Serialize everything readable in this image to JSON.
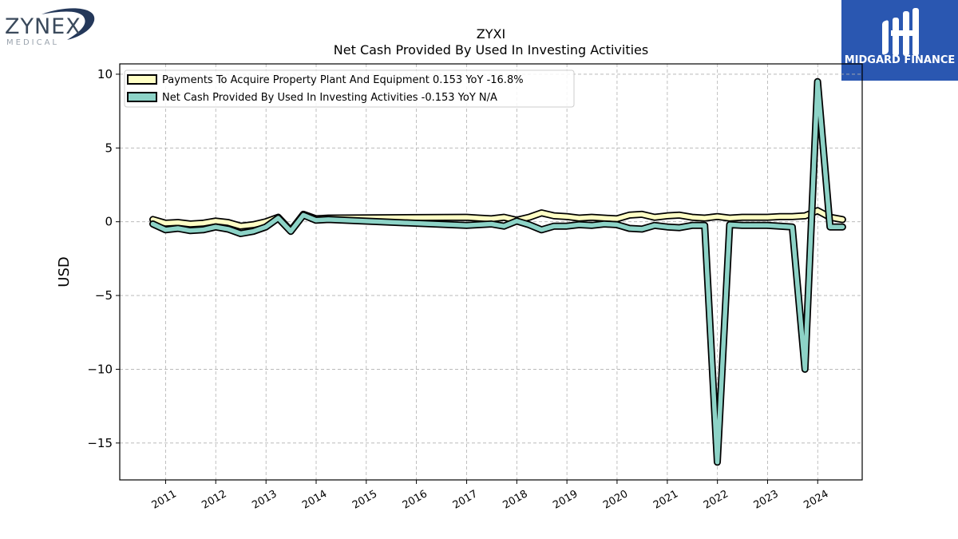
{
  "logos": {
    "left": {
      "name": "ZYNEX",
      "sub": "MEDICAL"
    },
    "right": {
      "name": "MIDGARD FINANCE"
    }
  },
  "chart_data": {
    "type": "line",
    "title": "ZYXI",
    "subtitle": "Net Cash Provided By Used In Investing Activities",
    "xlabel": "",
    "ylabel": "USD",
    "x_type": "date",
    "xlim": [
      "2010-02-01",
      "2024-11-20"
    ],
    "ylim": [
      -17.5,
      10.7
    ],
    "yticks": [
      10,
      5,
      0,
      -5,
      -10,
      -15
    ],
    "ytick_labels": [
      "10",
      "5",
      "0",
      "−5",
      "−10",
      "−15"
    ],
    "xticks": [
      "2011-01-01",
      "2012-01-01",
      "2013-01-01",
      "2014-01-01",
      "2015-01-01",
      "2016-01-01",
      "2017-01-01",
      "2018-01-01",
      "2019-01-01",
      "2020-01-01",
      "2021-01-01",
      "2022-01-01",
      "2023-01-01",
      "2024-01-01"
    ],
    "xtick_labels": [
      "2011",
      "2012",
      "2013",
      "2014",
      "2015",
      "2016",
      "2017",
      "2018",
      "2019",
      "2020",
      "2021",
      "2022",
      "2023",
      "2024"
    ],
    "grid": true,
    "legend_position": "top-left",
    "series": [
      {
        "name": "Payments To Acquire Property Plant And Equipment  0.153 YoY -16.8%",
        "color": "#ffffc5",
        "points": [
          [
            "2010-09-30",
            0.15
          ],
          [
            "2010-12-31",
            -0.1
          ],
          [
            "2011-03-31",
            -0.05
          ],
          [
            "2011-06-30",
            -0.15
          ],
          [
            "2011-09-30",
            -0.1
          ],
          [
            "2011-12-31",
            0.05
          ],
          [
            "2012-03-31",
            -0.05
          ],
          [
            "2012-06-30",
            -0.3
          ],
          [
            "2012-09-30",
            -0.2
          ],
          [
            "2012-12-31",
            0.0
          ],
          [
            "2013-03-31",
            0.3
          ],
          [
            "2013-06-30",
            -0.6
          ],
          [
            "2013-09-30",
            0.5
          ],
          [
            "2013-12-31",
            0.2
          ],
          [
            "2014-03-31",
            0.25
          ],
          [
            "2016-12-31",
            0.3
          ],
          [
            "2017-03-31",
            0.25
          ],
          [
            "2017-06-30",
            0.2
          ],
          [
            "2017-09-30",
            0.3
          ],
          [
            "2017-12-31",
            0.1
          ],
          [
            "2018-03-31",
            0.3
          ],
          [
            "2018-06-30",
            0.6
          ],
          [
            "2018-09-30",
            0.4
          ],
          [
            "2018-12-31",
            0.35
          ],
          [
            "2019-03-31",
            0.25
          ],
          [
            "2019-06-30",
            0.3
          ],
          [
            "2019-09-30",
            0.25
          ],
          [
            "2019-12-31",
            0.2
          ],
          [
            "2020-03-31",
            0.45
          ],
          [
            "2020-06-30",
            0.5
          ],
          [
            "2020-09-30",
            0.3
          ],
          [
            "2020-12-31",
            0.4
          ],
          [
            "2021-03-31",
            0.45
          ],
          [
            "2021-06-30",
            0.3
          ],
          [
            "2021-09-30",
            0.25
          ],
          [
            "2021-12-31",
            0.35
          ],
          [
            "2022-03-31",
            0.25
          ],
          [
            "2022-06-30",
            0.3
          ],
          [
            "2022-09-30",
            0.3
          ],
          [
            "2022-12-31",
            0.3
          ],
          [
            "2023-03-31",
            0.35
          ],
          [
            "2023-06-30",
            0.35
          ],
          [
            "2023-09-30",
            0.4
          ],
          [
            "2023-12-31",
            0.75
          ],
          [
            "2024-03-31",
            0.3
          ],
          [
            "2024-06-30",
            0.15
          ]
        ]
      },
      {
        "name": "Net Cash Provided By Used In Investing Activities  -0.153 YoY N/A",
        "color": "#8dd3c7",
        "points": [
          [
            "2010-09-30",
            -0.15
          ],
          [
            "2010-12-31",
            -0.55
          ],
          [
            "2011-03-31",
            -0.45
          ],
          [
            "2011-06-30",
            -0.6
          ],
          [
            "2011-09-30",
            -0.55
          ],
          [
            "2011-12-31",
            -0.35
          ],
          [
            "2012-03-31",
            -0.5
          ],
          [
            "2012-06-30",
            -0.8
          ],
          [
            "2012-09-30",
            -0.65
          ],
          [
            "2012-12-31",
            -0.35
          ],
          [
            "2013-03-31",
            0.25
          ],
          [
            "2013-06-30",
            -0.65
          ],
          [
            "2013-09-30",
            0.45
          ],
          [
            "2013-12-31",
            0.1
          ],
          [
            "2014-03-31",
            0.15
          ],
          [
            "2016-12-31",
            -0.25
          ],
          [
            "2017-03-31",
            -0.2
          ],
          [
            "2017-06-30",
            -0.15
          ],
          [
            "2017-09-30",
            -0.3
          ],
          [
            "2017-12-31",
            0.05
          ],
          [
            "2018-03-31",
            -0.2
          ],
          [
            "2018-06-30",
            -0.55
          ],
          [
            "2018-09-30",
            -0.3
          ],
          [
            "2018-12-31",
            -0.3
          ],
          [
            "2019-03-31",
            -0.2
          ],
          [
            "2019-06-30",
            -0.25
          ],
          [
            "2019-09-30",
            -0.15
          ],
          [
            "2019-12-31",
            -0.2
          ],
          [
            "2020-03-31",
            -0.45
          ],
          [
            "2020-06-30",
            -0.5
          ],
          [
            "2020-09-30",
            -0.25
          ],
          [
            "2020-12-31",
            -0.35
          ],
          [
            "2021-03-31",
            -0.4
          ],
          [
            "2021-06-30",
            -0.25
          ],
          [
            "2021-09-30",
            -0.25
          ],
          [
            "2021-12-31",
            -16.3
          ],
          [
            "2022-03-31",
            -0.2
          ],
          [
            "2022-06-30",
            -0.25
          ],
          [
            "2022-09-30",
            -0.25
          ],
          [
            "2022-12-31",
            -0.25
          ],
          [
            "2023-03-31",
            -0.3
          ],
          [
            "2023-06-30",
            -0.35
          ],
          [
            "2023-09-30",
            -10.0
          ],
          [
            "2023-12-31",
            9.5
          ],
          [
            "2024-03-31",
            -0.35
          ],
          [
            "2024-06-30",
            -0.35
          ]
        ]
      }
    ]
  }
}
